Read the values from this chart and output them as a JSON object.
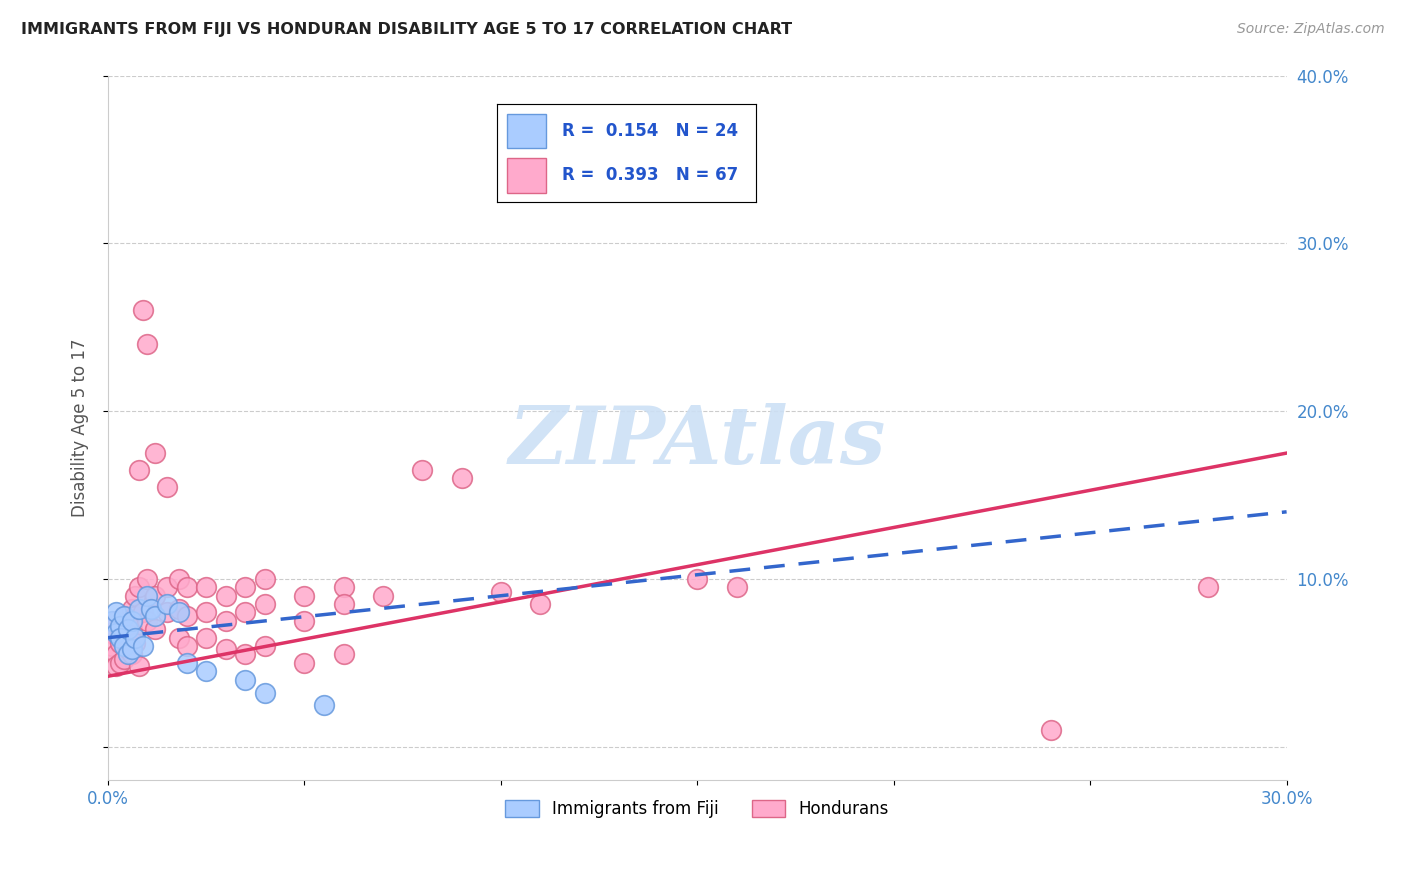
{
  "title": "IMMIGRANTS FROM FIJI VS HONDURAN DISABILITY AGE 5 TO 17 CORRELATION CHART",
  "source_text": "Source: ZipAtlas.com",
  "ylabel": "Disability Age 5 to 17",
  "xlim": [
    0.0,
    0.3
  ],
  "ylim": [
    -0.02,
    0.4
  ],
  "fiji_color": "#aaccff",
  "fiji_edge_color": "#6699dd",
  "honduran_color": "#ffaacc",
  "honduran_edge_color": "#dd6688",
  "fiji_line_color": "#3366cc",
  "honduran_line_color": "#dd3366",
  "watermark_color": "#cce0f5",
  "fiji_R": 0.154,
  "fiji_N": 24,
  "honduran_R": 0.393,
  "honduran_N": 67,
  "fiji_points": [
    [
      0.001,
      0.075
    ],
    [
      0.002,
      0.08
    ],
    [
      0.002,
      0.068
    ],
    [
      0.003,
      0.072
    ],
    [
      0.003,
      0.065
    ],
    [
      0.004,
      0.078
    ],
    [
      0.004,
      0.06
    ],
    [
      0.005,
      0.07
    ],
    [
      0.005,
      0.055
    ],
    [
      0.006,
      0.075
    ],
    [
      0.006,
      0.058
    ],
    [
      0.007,
      0.065
    ],
    [
      0.008,
      0.082
    ],
    [
      0.009,
      0.06
    ],
    [
      0.01,
      0.09
    ],
    [
      0.011,
      0.082
    ],
    [
      0.012,
      0.078
    ],
    [
      0.015,
      0.085
    ],
    [
      0.018,
      0.08
    ],
    [
      0.02,
      0.05
    ],
    [
      0.025,
      0.045
    ],
    [
      0.035,
      0.04
    ],
    [
      0.04,
      0.032
    ],
    [
      0.055,
      0.025
    ]
  ],
  "honduran_points": [
    [
      0.001,
      0.068
    ],
    [
      0.001,
      0.06
    ],
    [
      0.002,
      0.075
    ],
    [
      0.002,
      0.055
    ],
    [
      0.002,
      0.048
    ],
    [
      0.003,
      0.07
    ],
    [
      0.003,
      0.062
    ],
    [
      0.003,
      0.05
    ],
    [
      0.004,
      0.078
    ],
    [
      0.004,
      0.065
    ],
    [
      0.004,
      0.052
    ],
    [
      0.005,
      0.072
    ],
    [
      0.005,
      0.068
    ],
    [
      0.005,
      0.058
    ],
    [
      0.006,
      0.082
    ],
    [
      0.006,
      0.07
    ],
    [
      0.006,
      0.055
    ],
    [
      0.007,
      0.09
    ],
    [
      0.007,
      0.078
    ],
    [
      0.007,
      0.062
    ],
    [
      0.008,
      0.095
    ],
    [
      0.008,
      0.165
    ],
    [
      0.008,
      0.048
    ],
    [
      0.009,
      0.26
    ],
    [
      0.009,
      0.08
    ],
    [
      0.01,
      0.24
    ],
    [
      0.01,
      0.1
    ],
    [
      0.01,
      0.075
    ],
    [
      0.012,
      0.175
    ],
    [
      0.012,
      0.09
    ],
    [
      0.012,
      0.07
    ],
    [
      0.015,
      0.155
    ],
    [
      0.015,
      0.095
    ],
    [
      0.015,
      0.08
    ],
    [
      0.018,
      0.1
    ],
    [
      0.018,
      0.082
    ],
    [
      0.018,
      0.065
    ],
    [
      0.02,
      0.095
    ],
    [
      0.02,
      0.078
    ],
    [
      0.02,
      0.06
    ],
    [
      0.025,
      0.095
    ],
    [
      0.025,
      0.08
    ],
    [
      0.025,
      0.065
    ],
    [
      0.03,
      0.09
    ],
    [
      0.03,
      0.075
    ],
    [
      0.03,
      0.058
    ],
    [
      0.035,
      0.095
    ],
    [
      0.035,
      0.08
    ],
    [
      0.035,
      0.055
    ],
    [
      0.04,
      0.1
    ],
    [
      0.04,
      0.085
    ],
    [
      0.04,
      0.06
    ],
    [
      0.05,
      0.09
    ],
    [
      0.05,
      0.075
    ],
    [
      0.05,
      0.05
    ],
    [
      0.06,
      0.095
    ],
    [
      0.06,
      0.085
    ],
    [
      0.06,
      0.055
    ],
    [
      0.07,
      0.09
    ],
    [
      0.08,
      0.165
    ],
    [
      0.09,
      0.16
    ],
    [
      0.1,
      0.092
    ],
    [
      0.11,
      0.085
    ],
    [
      0.15,
      0.1
    ],
    [
      0.16,
      0.095
    ],
    [
      0.24,
      0.01
    ],
    [
      0.28,
      0.095
    ]
  ]
}
